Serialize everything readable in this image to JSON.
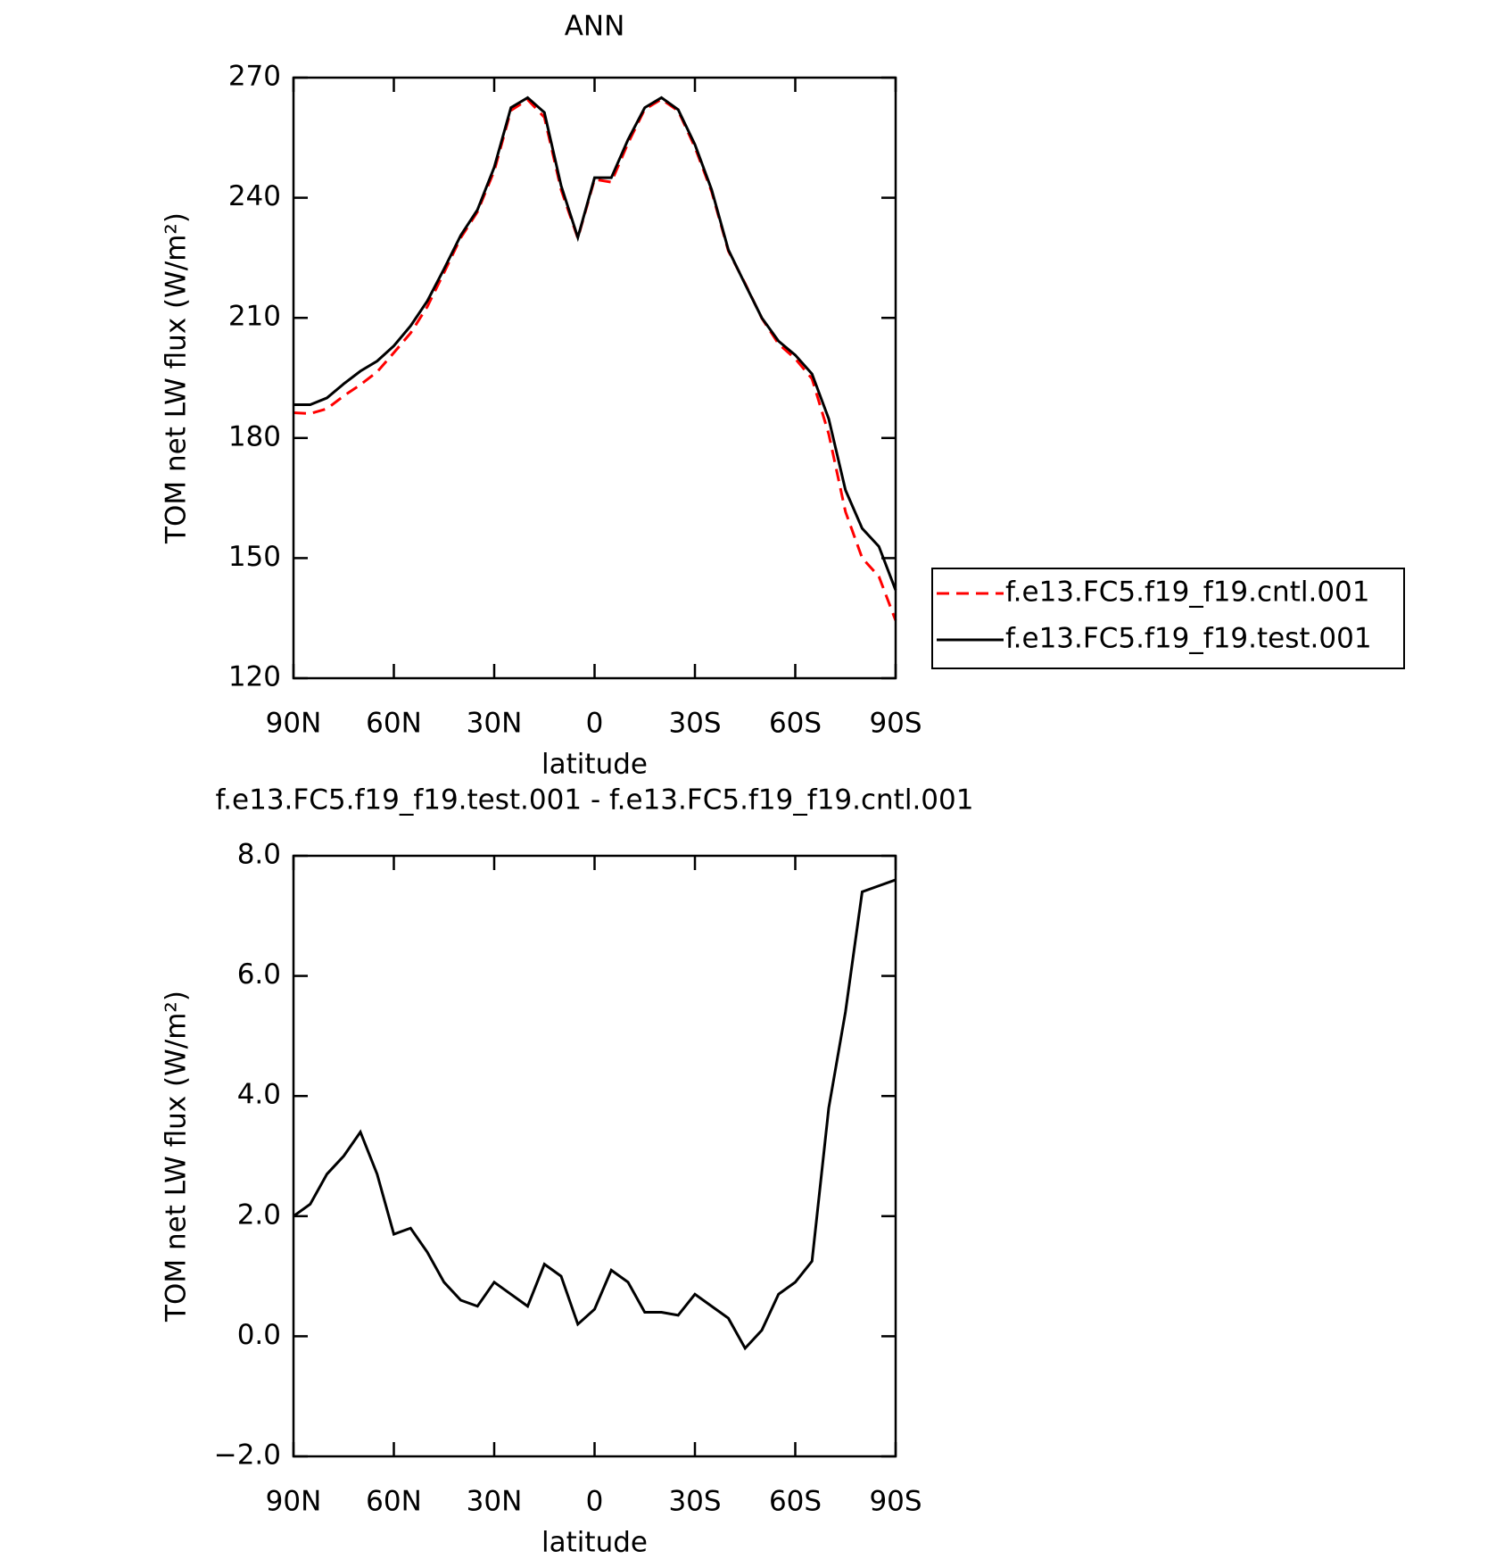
{
  "chart_data": [
    {
      "type": "line",
      "title": "ANN",
      "xlabel": "latitude",
      "ylabel": "TOM net LW flux (W/m²)",
      "x": [
        90,
        85,
        80,
        75,
        70,
        65,
        60,
        55,
        50,
        45,
        40,
        35,
        30,
        25,
        20,
        15,
        10,
        5,
        0,
        -5,
        -10,
        -15,
        -20,
        -25,
        -30,
        -35,
        -40,
        -45,
        -50,
        -55,
        -60,
        -65,
        -70,
        -75,
        -80,
        -85,
        -90
      ],
      "series": [
        {
          "name": "f.e13.FC5.f19_f19.cntl.001",
          "color": "#ff0000",
          "linestyle": "dashed",
          "values": [
            186.3,
            186.1,
            187.3,
            190.5,
            193.3,
            196.5,
            201.3,
            206.2,
            212.8,
            221.3,
            230,
            236.5,
            246.7,
            261.8,
            264.5,
            260.1,
            242,
            229.9,
            244.6,
            243.9,
            253.6,
            262.1,
            264.6,
            261.7,
            252.6,
            241.5,
            226.7,
            218.6,
            209.9,
            203.5,
            199.8,
            194.8,
            181,
            161.6,
            150,
            145.4,
            134.4
          ]
        },
        {
          "name": "f.e13.FC5.f19_f19.test.001",
          "color": "#000000",
          "linestyle": "solid",
          "values": [
            188.3,
            188.3,
            190,
            193.5,
            196.7,
            199.2,
            203,
            208,
            214.2,
            222.2,
            230.6,
            237,
            247.6,
            262.5,
            265,
            261.3,
            243,
            230.1,
            245,
            245,
            254.5,
            262.5,
            265,
            262,
            253.3,
            242,
            227,
            218.4,
            210,
            204.2,
            200.7,
            196,
            184.8,
            167,
            157.4,
            152.9,
            142
          ]
        }
      ],
      "xlim": [
        90,
        -90
      ],
      "xticks": [
        {
          "value": 90,
          "label": "90N"
        },
        {
          "value": 60,
          "label": "60N"
        },
        {
          "value": 30,
          "label": "30N"
        },
        0,
        {
          "value": -30,
          "label": "30S"
        },
        {
          "value": -60,
          "label": "60S"
        },
        {
          "value": -90,
          "label": "90S"
        }
      ],
      "ylim": [
        120,
        270
      ],
      "yticks": [
        120,
        150,
        180,
        210,
        240,
        270
      ],
      "legend": "right"
    },
    {
      "type": "line",
      "title": "f.e13.FC5.f19_f19.test.001 - f.e13.FC5.f19_f19.cntl.001",
      "xlabel": "latitude",
      "ylabel": "TOM net LW flux (W/m²)",
      "x": [
        90,
        85,
        80,
        75,
        70,
        65,
        60,
        55,
        50,
        45,
        40,
        35,
        30,
        25,
        20,
        15,
        10,
        5,
        0,
        -5,
        -10,
        -15,
        -20,
        -25,
        -30,
        -35,
        -40,
        -45,
        -50,
        -55,
        -60,
        -65,
        -70,
        -75,
        -80,
        -85,
        -90
      ],
      "color": "#000000",
      "values": [
        2.0,
        2.2,
        2.7,
        3.0,
        3.4,
        2.7,
        1.7,
        1.8,
        1.4,
        0.9,
        0.6,
        0.5,
        0.9,
        0.7,
        0.5,
        1.2,
        1.0,
        0.2,
        0.45,
        1.1,
        0.9,
        0.4,
        0.4,
        0.35,
        0.7,
        0.5,
        0.3,
        -0.2,
        0.1,
        0.7,
        0.9,
        1.25,
        3.8,
        5.4,
        7.4,
        7.5,
        7.6
      ],
      "xlim": [
        90,
        -90
      ],
      "xticks": [
        {
          "value": 90,
          "label": "90N"
        },
        {
          "value": 60,
          "label": "60N"
        },
        {
          "value": 30,
          "label": "30N"
        },
        0,
        {
          "value": -30,
          "label": "30S"
        },
        {
          "value": -60,
          "label": "60S"
        },
        {
          "value": -90,
          "label": "90S"
        }
      ],
      "ylim": [
        -2,
        8
      ],
      "yticks": [
        {
          "value": -2,
          "label": "−2.0"
        },
        {
          "value": 0,
          "label": "0.0"
        },
        {
          "value": 2,
          "label": "2.0"
        },
        {
          "value": 4,
          "label": "4.0"
        },
        {
          "value": 6,
          "label": "6.0"
        },
        {
          "value": 8,
          "label": "8.0"
        }
      ]
    }
  ]
}
